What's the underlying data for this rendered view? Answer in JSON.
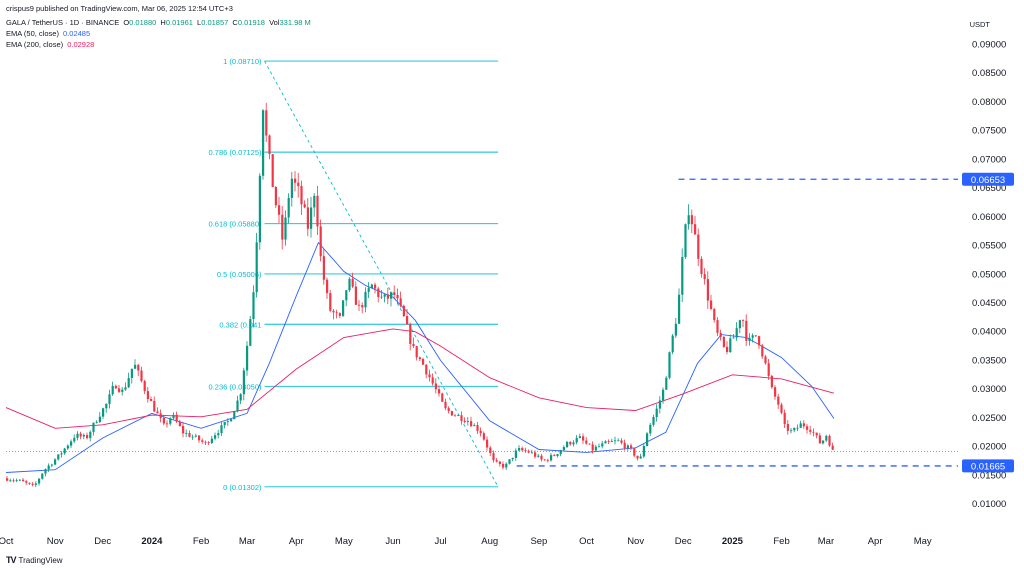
{
  "header": {
    "published": "crispus9 published on TradingView.com, Mar 06, 2025 12:54 UTC+3",
    "symbol": "GALA / TetherUS · 1D · BINANCE",
    "open_label": "O",
    "open": "0.01880",
    "high_label": "H",
    "high": "0.01961",
    "low_label": "L",
    "low": "0.01857",
    "close_label": "C",
    "close": "0.01918",
    "volume_label": "Vol",
    "volume": "331.98 M",
    "ema50_label": "EMA (50, close)",
    "ema50_value": "0.02485",
    "ema200_label": "EMA (200, close)",
    "ema200_value": "0.02928"
  },
  "currency": "USDT",
  "brand": "TradingView",
  "colors": {
    "up": "#089981",
    "down": "#f23645",
    "ema50": "#2962ff",
    "ema200": "#e91e63",
    "fib": "#00bcd4",
    "level": "#2962ff",
    "axis_text": "#131722",
    "grid": "#f0f3fa"
  },
  "chart_data": {
    "type": "candlestick",
    "symbol": "GALA/USDT",
    "timeframe": "1D",
    "exchange": "BINANCE",
    "ylim": [
      0.0055,
      0.0925
    ],
    "y_ticks": [
      "0.01000",
      "0.01500",
      "0.02000",
      "0.02500",
      "0.03000",
      "0.03500",
      "0.04000",
      "0.04500",
      "0.05000",
      "0.05500",
      "0.06000",
      "0.06500",
      "0.07000",
      "0.07500",
      "0.08000",
      "0.08500",
      "0.09000"
    ],
    "x_ticks": [
      {
        "label": "Oct",
        "date": "2023-10-01"
      },
      {
        "label": "Nov",
        "date": "2023-11-01"
      },
      {
        "label": "Dec",
        "date": "2023-12-01"
      },
      {
        "label": "2024",
        "date": "2024-01-01",
        "bold": true
      },
      {
        "label": "Feb",
        "date": "2024-02-01"
      },
      {
        "label": "Mar",
        "date": "2024-03-01"
      },
      {
        "label": "Apr",
        "date": "2024-04-01"
      },
      {
        "label": "May",
        "date": "2024-05-01"
      },
      {
        "label": "Jun",
        "date": "2024-06-01"
      },
      {
        "label": "Jul",
        "date": "2024-07-01"
      },
      {
        "label": "Aug",
        "date": "2024-08-01"
      },
      {
        "label": "Sep",
        "date": "2024-09-01"
      },
      {
        "label": "Oct",
        "date": "2024-10-01"
      },
      {
        "label": "Nov",
        "date": "2024-11-01"
      },
      {
        "label": "Dec",
        "date": "2024-12-01"
      },
      {
        "label": "2025",
        "date": "2025-01-01",
        "bold": true
      },
      {
        "label": "Feb",
        "date": "2025-02-01"
      },
      {
        "label": "Mar",
        "date": "2025-03-01"
      },
      {
        "label": "Apr",
        "date": "2025-04-01"
      },
      {
        "label": "May",
        "date": "2025-05-01"
      }
    ],
    "price_path": [
      [
        "2023-10-01",
        0.0145
      ],
      [
        "2023-10-12",
        0.014
      ],
      [
        "2023-10-20",
        0.013
      ],
      [
        "2023-10-26",
        0.0158
      ],
      [
        "2023-11-05",
        0.0185
      ],
      [
        "2023-11-15",
        0.022
      ],
      [
        "2023-11-22",
        0.0215
      ],
      [
        "2023-11-30",
        0.0255
      ],
      [
        "2023-12-05",
        0.0275
      ],
      [
        "2023-12-10",
        0.031
      ],
      [
        "2023-12-15",
        0.0295
      ],
      [
        "2023-12-22",
        0.0345
      ],
      [
        "2023-12-28",
        0.0305
      ],
      [
        "2024-01-03",
        0.027
      ],
      [
        "2024-01-10",
        0.0235
      ],
      [
        "2024-01-15",
        0.0255
      ],
      [
        "2024-01-22",
        0.0225
      ],
      [
        "2024-01-30",
        0.0215
      ],
      [
        "2024-02-05",
        0.0205
      ],
      [
        "2024-02-12",
        0.0225
      ],
      [
        "2024-02-20",
        0.0245
      ],
      [
        "2024-02-27",
        0.029
      ],
      [
        "2024-03-03",
        0.039
      ],
      [
        "2024-03-07",
        0.049
      ],
      [
        "2024-03-10",
        0.065
      ],
      [
        "2024-03-12",
        0.081
      ],
      [
        "2024-03-15",
        0.072
      ],
      [
        "2024-03-20",
        0.063
      ],
      [
        "2024-03-25",
        0.0555
      ],
      [
        "2024-03-30",
        0.067
      ],
      [
        "2024-04-04",
        0.064
      ],
      [
        "2024-04-10",
        0.058
      ],
      [
        "2024-04-14",
        0.065
      ],
      [
        "2024-04-18",
        0.052
      ],
      [
        "2024-04-23",
        0.044
      ],
      [
        "2024-04-30",
        0.042
      ],
      [
        "2024-05-05",
        0.049
      ],
      [
        "2024-05-12",
        0.044
      ],
      [
        "2024-05-20",
        0.048
      ],
      [
        "2024-05-27",
        0.0455
      ],
      [
        "2024-06-03",
        0.0465
      ],
      [
        "2024-06-09",
        0.0425
      ],
      [
        "2024-06-15",
        0.037
      ],
      [
        "2024-06-22",
        0.034
      ],
      [
        "2024-06-30",
        0.0295
      ],
      [
        "2024-07-05",
        0.0265
      ],
      [
        "2024-07-12",
        0.0255
      ],
      [
        "2024-07-20",
        0.0245
      ],
      [
        "2024-07-28",
        0.0225
      ],
      [
        "2024-08-05",
        0.0172
      ],
      [
        "2024-08-12",
        0.0165
      ],
      [
        "2024-08-20",
        0.0195
      ],
      [
        "2024-08-28",
        0.019
      ],
      [
        "2024-09-05",
        0.0175
      ],
      [
        "2024-09-12",
        0.0185
      ],
      [
        "2024-09-20",
        0.0205
      ],
      [
        "2024-09-28",
        0.0215
      ],
      [
        "2024-10-06",
        0.0195
      ],
      [
        "2024-10-14",
        0.0205
      ],
      [
        "2024-10-22",
        0.021
      ],
      [
        "2024-10-30",
        0.0195
      ],
      [
        "2024-11-05",
        0.0175
      ],
      [
        "2024-11-10",
        0.023
      ],
      [
        "2024-11-15",
        0.026
      ],
      [
        "2024-11-20",
        0.03
      ],
      [
        "2024-11-25",
        0.038
      ],
      [
        "2024-11-29",
        0.044
      ],
      [
        "2024-12-03",
        0.056
      ],
      [
        "2024-12-06",
        0.062
      ],
      [
        "2024-12-09",
        0.0575
      ],
      [
        "2024-12-13",
        0.052
      ],
      [
        "2024-12-18",
        0.046
      ],
      [
        "2024-12-23",
        0.04
      ],
      [
        "2024-12-29",
        0.0365
      ],
      [
        "2025-01-04",
        0.0395
      ],
      [
        "2025-01-08",
        0.0435
      ],
      [
        "2025-01-12",
        0.038
      ],
      [
        "2025-01-18",
        0.0395
      ],
      [
        "2025-01-23",
        0.0345
      ],
      [
        "2025-01-27",
        0.03
      ],
      [
        "2025-02-01",
        0.027
      ],
      [
        "2025-02-04",
        0.0235
      ],
      [
        "2025-02-09",
        0.0225
      ],
      [
        "2025-02-15",
        0.024
      ],
      [
        "2025-02-21",
        0.023
      ],
      [
        "2025-02-27",
        0.0205
      ],
      [
        "2025-03-03",
        0.0222
      ],
      [
        "2025-03-06",
        0.0192
      ]
    ],
    "series": [
      {
        "name": "EMA (50, close)",
        "color": "#2962ff",
        "points": [
          [
            "2023-10-01",
            0.0155
          ],
          [
            "2023-11-01",
            0.016
          ],
          [
            "2023-12-01",
            0.0215
          ],
          [
            "2024-01-01",
            0.0258
          ],
          [
            "2024-02-01",
            0.0232
          ],
          [
            "2024-03-01",
            0.0258
          ],
          [
            "2024-03-15",
            0.0345
          ],
          [
            "2024-04-01",
            0.0462
          ],
          [
            "2024-04-15",
            0.0555
          ],
          [
            "2024-05-01",
            0.0505
          ],
          [
            "2024-05-15",
            0.048
          ],
          [
            "2024-06-01",
            0.046
          ],
          [
            "2024-06-15",
            0.042
          ],
          [
            "2024-07-01",
            0.035
          ],
          [
            "2024-08-01",
            0.0245
          ],
          [
            "2024-09-01",
            0.0195
          ],
          [
            "2024-10-01",
            0.019
          ],
          [
            "2024-11-01",
            0.0198
          ],
          [
            "2024-11-20",
            0.0225
          ],
          [
            "2024-12-10",
            0.0345
          ],
          [
            "2024-12-25",
            0.0395
          ],
          [
            "2025-01-10",
            0.039
          ],
          [
            "2025-02-01",
            0.0355
          ],
          [
            "2025-02-20",
            0.0305
          ],
          [
            "2025-03-06",
            0.0249
          ]
        ]
      },
      {
        "name": "EMA (200, close)",
        "color": "#e91e63",
        "points": [
          [
            "2023-10-01",
            0.0268
          ],
          [
            "2023-11-01",
            0.0232
          ],
          [
            "2023-12-01",
            0.0238
          ],
          [
            "2024-01-01",
            0.0255
          ],
          [
            "2024-02-01",
            0.0252
          ],
          [
            "2024-03-01",
            0.0265
          ],
          [
            "2024-04-01",
            0.0335
          ],
          [
            "2024-05-01",
            0.039
          ],
          [
            "2024-06-01",
            0.0405
          ],
          [
            "2024-06-15",
            0.04
          ],
          [
            "2024-07-01",
            0.0375
          ],
          [
            "2024-08-01",
            0.032
          ],
          [
            "2024-09-01",
            0.0285
          ],
          [
            "2024-10-01",
            0.0268
          ],
          [
            "2024-11-01",
            0.0263
          ],
          [
            "2024-12-01",
            0.0292
          ],
          [
            "2025-01-01",
            0.0325
          ],
          [
            "2025-02-01",
            0.0318
          ],
          [
            "2025-03-06",
            0.0293
          ]
        ]
      }
    ],
    "fibonacci": {
      "start": "2024-03-12",
      "end": "2024-08-05",
      "levels": [
        {
          "ratio": "1",
          "price": 0.0871,
          "label": "1 (0.08710)"
        },
        {
          "ratio": "0.786",
          "price": 0.07125,
          "label": "0.786 (0.07125)"
        },
        {
          "ratio": "0.618",
          "price": 0.0588,
          "label": "0.618 (0.05880)"
        },
        {
          "ratio": "0.5",
          "price": 0.05006,
          "label": "0.5 (0.05006)"
        },
        {
          "ratio": "0.382",
          "price": 0.0413,
          "label": "0.382 (0.041"
        },
        {
          "ratio": "0.236",
          "price": 0.0305,
          "label": "0.236 (0.03050)"
        },
        {
          "ratio": "0",
          "price": 0.01302,
          "label": "0 (0.01302)"
        }
      ]
    },
    "horizontal_levels": [
      {
        "price": 0.06653,
        "label": "0.06653",
        "from": "2024-11-28"
      },
      {
        "price": 0.01665,
        "label": "0.01665",
        "from": "2024-08-18"
      }
    ],
    "current_price_line": 0.01918
  }
}
